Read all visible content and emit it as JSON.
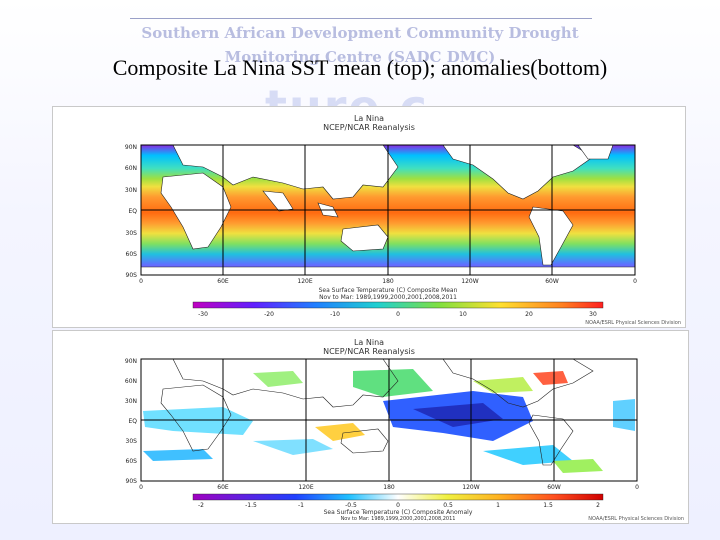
{
  "slide": {
    "header_line1": "Southern African Development Community Drought",
    "header_line2": "Monitoring Centre (SADC DMC)",
    "title": "Composite La  Nina SST mean (top);  anomalies(bottom)",
    "watermark": "ture c"
  },
  "top_panel": {
    "title1": "La Nina",
    "title2": "NCEP/NCAR Reanalysis",
    "lat_labels": [
      "90N",
      "60N",
      "30N",
      "EQ",
      "30S",
      "60S",
      "90S"
    ],
    "lon_labels": [
      "0",
      "60E",
      "120E",
      "180",
      "120W",
      "60W",
      "0"
    ],
    "caption1": "Sea Surface Temperature (C) Composite Mean",
    "caption2": "Nov to Mar: 1989,1999,2000,2001,2008,2011",
    "colorbar_ticks": [
      "-30",
      "-20",
      "-10",
      "0",
      "10",
      "20",
      "30"
    ],
    "credit": "NOAA/ESRL Physical Sciences Division"
  },
  "bottom_panel": {
    "title1": "La Nina",
    "title2": "NCEP/NCAR Reanalysis",
    "lat_labels": [
      "90N",
      "60N",
      "30N",
      "EQ",
      "30S",
      "60S",
      "90S"
    ],
    "lon_labels": [
      "0",
      "60E",
      "120E",
      "180",
      "120W",
      "60W",
      "0"
    ],
    "caption1": "Sea Surface Temperature (C) Composite Anomaly",
    "caption2": "Nov to Mar: 1989,1999,2000,2001,2008,2011",
    "colorbar_ticks": [
      "-2",
      "-1.5",
      "-1",
      "-0.5",
      "0",
      "0.5",
      "1",
      "1.5",
      "2"
    ],
    "credit": "NOAA/ESRL Physical Sciences Division"
  }
}
